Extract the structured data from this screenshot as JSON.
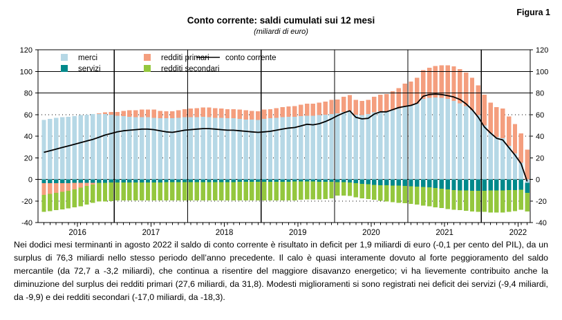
{
  "figure_label": "Figura 1",
  "title": "Conto corrente: saldi cumulati sui 12 mesi",
  "subtitle": "(miliardi di euro)",
  "caption": "Nei dodici mesi terminanti in agosto 2022 il saldo di conto corrente è risultato in deficit per 1,9 miliardi di euro (-0,1 per cento del PIL), da un surplus di 76,3 miliardi nello stesso periodo dell’anno precedente.  Il calo è quasi interamente dovuto al forte peggioramento del saldo mercantile (da 72,7 a -3,2 miliardi), che continua a risentire del maggiore disavanzo energetico; vi ha lievemente contribuito anche la diminuzione del surplus dei redditi primari (27,6 miliardi, da 31,8).  Modesti miglioramenti si sono registrati nei deficit dei servizi (-9,4 miliardi, da -9,9) e dei redditi secondari (-17,0 miliardi, da -18,3).",
  "colors": {
    "merci": "#B6D8E6",
    "servizi": "#00898B",
    "redditi_primari": "#F49E7E",
    "redditi_secondari": "#94C73E",
    "conto_corrente": "#000000"
  },
  "chart_data": {
    "type": "bar",
    "subtype": "stacked-monthly-bars-with-line",
    "unit": "miliardi di euro",
    "x_start": "2016-01",
    "x_end": "2022-08",
    "months_count": 80,
    "year_labels": [
      "2016",
      "2017",
      "2018",
      "2019",
      "2020",
      "2021",
      "2022"
    ],
    "ylim": [
      -40,
      120
    ],
    "ytick_step": 20,
    "grid": {
      "dotted_levels": [
        -20,
        20,
        40,
        60
      ],
      "solid_levels": [
        80,
        100
      ],
      "zero_line": true,
      "vertical_year_separators": true
    },
    "legend_position": "top-left-inside",
    "series": [
      {
        "name": "merci",
        "color": "#B6D8E6",
        "values": [
          55,
          56,
          57,
          57.5,
          58,
          58.5,
          59.5,
          60,
          60.5,
          60.5,
          60.5,
          60,
          59,
          58.5,
          58,
          57.5,
          57.5,
          57.5,
          57,
          56.5,
          56.5,
          56.5,
          57,
          57.5,
          57.5,
          57.5,
          58,
          57.5,
          57,
          57,
          56.5,
          56.5,
          56,
          55.5,
          55.5,
          55,
          56,
          56.5,
          57,
          57.5,
          58,
          58,
          58.5,
          59,
          59,
          59.5,
          60,
          60.5,
          61,
          62.5,
          63.5,
          60,
          59.5,
          60.5,
          62,
          63,
          63,
          64,
          65.5,
          68,
          68.5,
          70,
          74.5,
          75.5,
          76,
          75.5,
          74.5,
          72.7,
          70.5,
          68,
          64,
          59.5,
          50,
          43,
          39,
          38,
          31,
          24,
          15.5,
          -3.2
        ]
      },
      {
        "name": "servizi",
        "color": "#00898B",
        "values": [
          -3.5,
          -3.5,
          -3.5,
          -3.4,
          -3.4,
          -3.3,
          -3.3,
          -3.2,
          -3.2,
          -3.1,
          -3.1,
          -3,
          -3,
          -3,
          -2.9,
          -2.9,
          -2.9,
          -2.8,
          -2.8,
          -2.8,
          -2.7,
          -2.7,
          -2.7,
          -2.6,
          -2.6,
          -2.6,
          -2.5,
          -2.5,
          -2.5,
          -2.4,
          -2.4,
          -2.4,
          -2.3,
          -2.3,
          -2.3,
          -2.2,
          -2.2,
          -2.2,
          -2.1,
          -2.1,
          -2.1,
          -2,
          -2,
          -2,
          -2,
          -2.1,
          -2.2,
          -2.3,
          -2.4,
          -2.6,
          -3,
          -3.5,
          -4,
          -4.5,
          -5,
          -5.3,
          -5.5,
          -5.7,
          -5.9,
          -6.1,
          -6.3,
          -6.6,
          -7,
          -7.5,
          -8,
          -8.5,
          -9.2,
          -9.9,
          -10.1,
          -10.3,
          -10.4,
          -10.5,
          -10.4,
          -10.3,
          -10.2,
          -10.1,
          -10,
          -9.8,
          -9.6,
          -9.4
        ]
      },
      {
        "name": "redditi primari",
        "color": "#F49E7E",
        "values": [
          -11,
          -10,
          -9,
          -8,
          -7,
          -6,
          -4.5,
          -3,
          -1.5,
          0.5,
          1.5,
          2.5,
          3.5,
          5,
          6,
          6.5,
          7,
          7,
          7.5,
          7,
          6.5,
          6.5,
          7,
          7.5,
          8,
          8.5,
          8.5,
          9,
          9,
          8.5,
          8.5,
          8.5,
          8.5,
          8.5,
          8,
          8,
          8.5,
          8.5,
          9,
          9.5,
          9.5,
          10,
          10.5,
          11,
          11,
          11.5,
          12,
          13,
          13,
          14,
          14.5,
          13.5,
          13,
          13,
          14.5,
          15.5,
          16,
          17.5,
          19,
          20.5,
          22,
          24,
          26.5,
          28,
          29,
          30,
          31,
          31.8,
          31.5,
          31,
          30,
          27.5,
          28.5,
          28,
          27.8,
          27.5,
          27.2,
          27.2,
          27.2,
          27.6
        ]
      },
      {
        "name": "redditi secondari",
        "color": "#94C73E",
        "values": [
          -15.5,
          -16,
          -16,
          -16.5,
          -16.5,
          -16.5,
          -17,
          -17,
          -17,
          -17.5,
          -17.5,
          -17,
          -16.5,
          -16.5,
          -16.6,
          -16.6,
          -16.6,
          -16.7,
          -16.7,
          -16.7,
          -16.8,
          -16.8,
          -16.8,
          -16.9,
          -17,
          -17,
          -17,
          -17,
          -17,
          -17.1,
          -17.1,
          -17.1,
          -17.2,
          -17.2,
          -17.2,
          -17.3,
          -17.3,
          -17.3,
          -17.4,
          -17.4,
          -17.4,
          -17.5,
          -17,
          -16.5,
          -16.5,
          -16.4,
          -16,
          -15.2,
          -12.5,
          -12.5,
          -12.5,
          -13,
          -13.5,
          -13.8,
          -14,
          -14.5,
          -15,
          -15.5,
          -15.8,
          -16,
          -16.5,
          -16.8,
          -17.2,
          -17.5,
          -17.8,
          -18,
          -18.2,
          -18.3,
          -18.5,
          -18.8,
          -19.2,
          -19.5,
          -19.8,
          -20.3,
          -20.5,
          -20.5,
          -20,
          -19.5,
          -18.5,
          -17
        ]
      }
    ],
    "line_series": {
      "name": "conto corrente",
      "color": "#000000",
      "values": [
        25,
        26.5,
        28,
        29.5,
        31,
        32.5,
        34,
        35.5,
        37,
        39,
        41,
        42.5,
        44,
        45,
        45.5,
        46,
        46.5,
        46.5,
        46,
        45,
        44,
        43.5,
        44.5,
        45.5,
        46,
        46.5,
        47,
        47,
        46.5,
        46,
        45.5,
        45.5,
        45,
        44.5,
        44,
        43.5,
        44,
        44.5,
        45.5,
        46.5,
        47.5,
        48,
        49.5,
        51,
        50.5,
        51.5,
        53.5,
        56,
        59,
        61.5,
        63.5,
        57.5,
        56,
        56.5,
        60.5,
        62.5,
        62.5,
        64.5,
        66.5,
        67.5,
        68.5,
        70.5,
        77,
        78.5,
        79,
        78.5,
        77.5,
        76.3,
        74,
        70,
        64.5,
        57.5,
        48.5,
        43,
        38,
        36.5,
        29.5,
        22.5,
        14.5,
        -1.9
      ]
    },
    "key_values": {
      "conto_corrente_ago_2022": -1.9,
      "conto_corrente_ago_2021": 76.3,
      "merci_ago_2022": -3.2,
      "merci_ago_2021": 72.7,
      "redditi_primari_ago_2022": 27.6,
      "redditi_primari_ago_2021": 31.8,
      "servizi_ago_2022": -9.4,
      "servizi_ago_2021": -9.9,
      "redditi_secondari_ago_2022": -17.0,
      "redditi_secondari_ago_2021": -18.3
    }
  }
}
